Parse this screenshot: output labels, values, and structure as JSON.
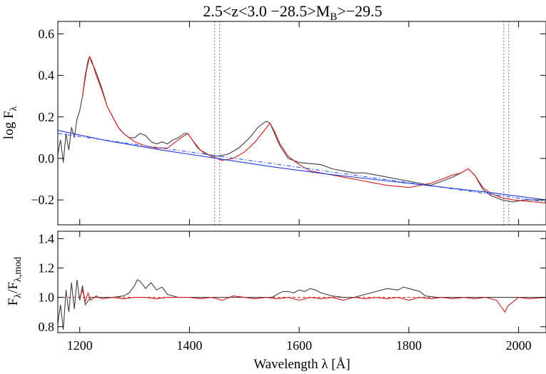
{
  "chart_data": [
    {
      "type": "line",
      "title": "2.5<z<3.0 −28.5>M",
      "title_sub": "B",
      "title_tail": ">−29.5",
      "ylabel": "log F",
      "ylabel_sub": "λ",
      "xlim": [
        1160,
        2050
      ],
      "ylim": [
        -0.32,
        0.66
      ],
      "yticks": [
        -0.2,
        0.0,
        0.2,
        0.4,
        0.6
      ],
      "ytick_labels": [
        "−0.2",
        "0.0",
        "0.2",
        "0.4",
        "0.6"
      ],
      "xticks": [
        1200,
        1400,
        1600,
        1800,
        2000
      ],
      "vlines": [
        1446,
        1455,
        1973,
        1982
      ],
      "series": [
        {
          "role": "observed spectrum",
          "color": "#404040",
          "x": [
            1160,
            1165,
            1170,
            1175,
            1180,
            1185,
            1190,
            1195,
            1200,
            1205,
            1210,
            1215,
            1218,
            1222,
            1226,
            1232,
            1240,
            1250,
            1260,
            1270,
            1280,
            1290,
            1300,
            1310,
            1320,
            1330,
            1340,
            1350,
            1360,
            1370,
            1380,
            1390,
            1397,
            1405,
            1415,
            1430,
            1450,
            1470,
            1490,
            1510,
            1525,
            1540,
            1547,
            1555,
            1565,
            1580,
            1600,
            1620,
            1640,
            1660,
            1680,
            1700,
            1720,
            1740,
            1760,
            1780,
            1800,
            1820,
            1840,
            1860,
            1880,
            1895,
            1908,
            1920,
            1935,
            1950,
            1970,
            1990,
            2010,
            2030,
            2050
          ],
          "y": [
            0.02,
            0.09,
            -0.02,
            0.12,
            0.04,
            0.15,
            0.1,
            0.19,
            0.23,
            0.3,
            0.4,
            0.47,
            0.49,
            0.46,
            0.44,
            0.4,
            0.34,
            0.25,
            0.2,
            0.15,
            0.12,
            0.1,
            0.1,
            0.12,
            0.11,
            0.08,
            0.07,
            0.08,
            0.07,
            0.09,
            0.1,
            0.12,
            0.12,
            0.09,
            0.05,
            0.02,
            0.01,
            0.02,
            0.05,
            0.1,
            0.15,
            0.18,
            0.17,
            0.12,
            0.06,
            0.0,
            -0.02,
            -0.025,
            -0.03,
            -0.05,
            -0.06,
            -0.07,
            -0.07,
            -0.08,
            -0.09,
            -0.1,
            -0.11,
            -0.12,
            -0.13,
            -0.11,
            -0.09,
            -0.07,
            -0.05,
            -0.08,
            -0.15,
            -0.18,
            -0.2,
            -0.21,
            -0.2,
            -0.2,
            -0.2
          ]
        },
        {
          "role": "model fit",
          "color": "#cc1f1f",
          "x": [
            1205,
            1212,
            1218,
            1222,
            1230,
            1240,
            1250,
            1260,
            1270,
            1280,
            1290,
            1300,
            1320,
            1340,
            1360,
            1370,
            1385,
            1397,
            1405,
            1420,
            1440,
            1460,
            1480,
            1500,
            1520,
            1535,
            1547,
            1555,
            1565,
            1580,
            1600,
            1620,
            1640,
            1660,
            1680,
            1700,
            1720,
            1760,
            1800,
            1840,
            1860,
            1880,
            1895,
            1908,
            1920,
            1935,
            1950,
            1970,
            1990,
            2010,
            2030,
            2050
          ],
          "y": [
            0.3,
            0.42,
            0.49,
            0.47,
            0.4,
            0.33,
            0.25,
            0.2,
            0.15,
            0.12,
            0.1,
            0.08,
            0.06,
            0.05,
            0.05,
            0.07,
            0.1,
            0.12,
            0.09,
            0.04,
            0.01,
            -0.01,
            0.0,
            0.03,
            0.08,
            0.13,
            0.17,
            0.13,
            0.07,
            0.01,
            -0.03,
            -0.06,
            -0.07,
            -0.08,
            -0.09,
            -0.1,
            -0.11,
            -0.13,
            -0.14,
            -0.12,
            -0.1,
            -0.08,
            -0.07,
            -0.05,
            -0.08,
            -0.14,
            -0.17,
            -0.19,
            -0.2,
            -0.205,
            -0.21,
            -0.215
          ]
        },
        {
          "role": "continuum model",
          "color": "#1d3cd9",
          "x": [
            1160,
            1250,
            1350,
            1450,
            1550,
            1650,
            1750,
            1850,
            1950,
            2050
          ],
          "y": [
            0.135,
            0.085,
            0.04,
            0.0,
            -0.04,
            -0.075,
            -0.105,
            -0.135,
            -0.165,
            -0.2
          ]
        },
        {
          "role": "power-law continuum",
          "color": "#3355ff",
          "dash": "dash-dot",
          "x": [
            1160,
            2050
          ],
          "y": [
            0.12,
            -0.21
          ]
        }
      ]
    },
    {
      "type": "line",
      "ylabel": "F",
      "ylabel_sub1": "λ",
      "ylabel_mid": "/F",
      "ylabel_sub2": "λ,mod",
      "xlabel": "Wavelength λ [Å]",
      "xlim": [
        1160,
        2050
      ],
      "ylim": [
        0.76,
        1.45
      ],
      "yticks": [
        0.8,
        1.0,
        1.2,
        1.4
      ],
      "ytick_labels": [
        "0.8",
        "1.0",
        "1.2",
        "1.4"
      ],
      "xticks": [
        1200,
        1400,
        1600,
        1800,
        2000
      ],
      "xtick_labels": [
        "1200",
        "1400",
        "1600",
        "1800",
        "2000"
      ],
      "reference_line": 1.0,
      "series": [
        {
          "role": "observed ratio",
          "color": "#404040",
          "x": [
            1160,
            1165,
            1170,
            1175,
            1180,
            1185,
            1190,
            1195,
            1200,
            1205,
            1210,
            1220,
            1240,
            1260,
            1280,
            1290,
            1300,
            1305,
            1310,
            1320,
            1330,
            1340,
            1350,
            1360,
            1380,
            1400,
            1450,
            1500,
            1550,
            1560,
            1570,
            1580,
            1590,
            1600,
            1610,
            1620,
            1630,
            1640,
            1650,
            1660,
            1680,
            1700,
            1720,
            1740,
            1760,
            1780,
            1790,
            1800,
            1810,
            1820,
            1830,
            1850,
            1900,
            1950,
            2000,
            2050
          ],
          "y": [
            0.82,
            0.95,
            0.78,
            1.05,
            0.9,
            1.1,
            0.92,
            1.12,
            0.98,
            1.08,
            0.95,
            1.0,
            1.0,
            1.0,
            1.01,
            1.03,
            1.08,
            1.12,
            1.11,
            1.06,
            1.1,
            1.05,
            1.07,
            1.02,
            1.0,
            1.0,
            1.0,
            1.0,
            1.0,
            1.02,
            1.04,
            1.04,
            1.03,
            1.05,
            1.04,
            1.06,
            1.05,
            1.03,
            1.02,
            1.01,
            1.0,
            1.0,
            1.02,
            1.04,
            1.06,
            1.05,
            1.07,
            1.06,
            1.05,
            1.04,
            1.01,
            1.0,
            1.0,
            1.0,
            1.0,
            1.0
          ]
        },
        {
          "role": "masked ratio",
          "color": "#cc1f1f",
          "x": [
            1200,
            1205,
            1210,
            1215,
            1220,
            1230,
            1240,
            1260,
            1280,
            1300,
            1320,
            1340,
            1360,
            1380,
            1400,
            1420,
            1440,
            1460,
            1480,
            1500,
            1520,
            1540,
            1560,
            1580,
            1600,
            1620,
            1640,
            1660,
            1680,
            1700,
            1720,
            1740,
            1760,
            1780,
            1800,
            1820,
            1840,
            1860,
            1880,
            1900,
            1920,
            1940,
            1960,
            1975,
            1980,
            2000,
            2020,
            2050
          ],
          "y": [
            1.0,
            1.05,
            0.97,
            1.03,
            0.98,
            1.01,
            0.99,
            1.0,
            0.99,
            1.0,
            1.0,
            0.99,
            1.0,
            1.0,
            1.0,
            0.99,
            1.0,
            0.98,
            1.01,
            1.0,
            0.99,
            1.0,
            0.99,
            1.0,
            0.98,
            1.0,
            0.99,
            1.0,
            0.98,
            1.0,
            0.99,
            1.0,
            0.99,
            1.0,
            0.98,
            1.0,
            0.99,
            1.0,
            0.99,
            1.0,
            0.99,
            1.0,
            0.98,
            0.9,
            0.94,
            1.0,
            0.99,
            1.0
          ]
        }
      ]
    }
  ]
}
